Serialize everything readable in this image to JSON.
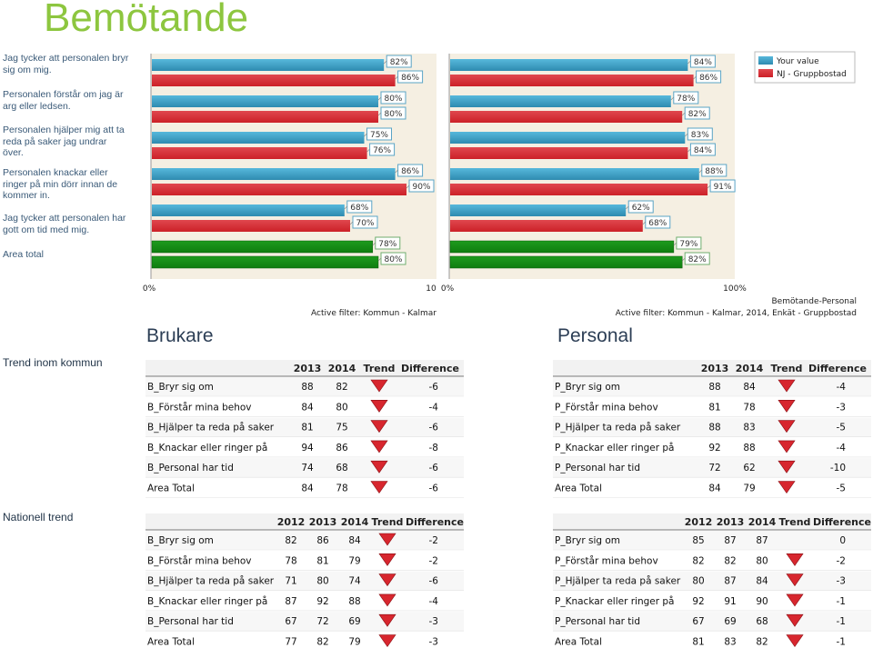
{
  "title": "Bemötande",
  "questions": [
    "Jag tycker att personalen bryr sig om mig.",
    "Personalen förstår om jag är arg eller ledsen.",
    "Personalen hjälper mig att ta reda på saker jag undrar över.",
    "Personalen knackar eller ringer på min dörr innan de kommer in.",
    "Jag tycker att personalen har gott om tid med mig.",
    "Area total"
  ],
  "sections": {
    "trend_kommun": "Trend inom kommun",
    "nationell": "Nationell trend"
  },
  "colors": {
    "your_value": "#2e8bb0",
    "comparison": "#cc2027",
    "total_a": "#1e9b1e",
    "total_b": "#0f7d0f",
    "panel_bg": "#f5efe2",
    "label_border": "#5aa4c6",
    "trend_down": "#d7262e"
  },
  "chart_data": [
    {
      "type": "bar",
      "categories": [
        "Jag tycker att personalen bryr sig om mig.",
        "Personalen förstår om jag är arg eller ledsen.",
        "Personalen hjälper mig att ta reda på saker jag undrar över.",
        "Personalen knackar eller ringer på min dörr innan de kommer in.",
        "Jag tycker att personalen har gott om tid med mig.",
        "Area total"
      ],
      "series": [
        {
          "values": [
            82,
            80,
            75,
            86,
            68,
            78
          ]
        },
        {
          "values": [
            86,
            80,
            76,
            90,
            70,
            80
          ]
        }
      ],
      "value_labels": [
        [
          "82%",
          "80%",
          "75%",
          "86%",
          "68%",
          "78%"
        ],
        [
          "86%",
          "80%",
          "76%",
          "90%",
          "70%",
          "80%"
        ]
      ],
      "xlim": [
        0,
        100
      ],
      "axis_left": "0%",
      "axis_right": "10",
      "footer": "Active filter: Kommun - Kalmar"
    },
    {
      "type": "bar",
      "categories": [
        "Jag tycker att personalen bryr sig om mig.",
        "Personalen förstår om jag är arg eller ledsen.",
        "Personalen hjälper mig att ta reda på saker jag undrar över.",
        "Personalen knackar eller ringer på min dörr innan de kommer in.",
        "Jag tycker att personalen har gott om tid med mig.",
        "Area total"
      ],
      "series": [
        {
          "name": "Your value",
          "values": [
            84,
            78,
            83,
            88,
            62,
            79
          ]
        },
        {
          "name": "NJ - Gruppbostad",
          "values": [
            86,
            82,
            84,
            91,
            68,
            82
          ]
        }
      ],
      "value_labels": [
        [
          "84%",
          "78%",
          "83%",
          "88%",
          "62%",
          "79%"
        ],
        [
          "86%",
          "82%",
          "84%",
          "91%",
          "68%",
          "82%"
        ]
      ],
      "xlim": [
        0,
        100
      ],
      "axis_left": "0%",
      "axis_right": "100%",
      "caption": "Bemötande-Personal",
      "footer": "Active filter: Kommun - Kalmar, 2014, Enkät - Gruppbostad",
      "legend": "top-right"
    },
    {
      "type": "table",
      "title": "Brukare",
      "columns": [
        "2013",
        "2014",
        "Trend",
        "Difference"
      ],
      "rows": [
        {
          "label": "B_Bryr sig om",
          "values": [
            "88",
            "82"
          ],
          "trend": "down",
          "diff": "-6"
        },
        {
          "label": "B_Förstår mina behov",
          "values": [
            "84",
            "80"
          ],
          "trend": "down",
          "diff": "-4"
        },
        {
          "label": "B_Hjälper ta reda på saker",
          "values": [
            "81",
            "75"
          ],
          "trend": "down",
          "diff": "-6"
        },
        {
          "label": "B_Knackar eller ringer på",
          "values": [
            "94",
            "86"
          ],
          "trend": "down",
          "diff": "-8"
        },
        {
          "label": "B_Personal har tid",
          "values": [
            "74",
            "68"
          ],
          "trend": "down",
          "diff": "-6"
        },
        {
          "label": "Area Total",
          "values": [
            "84",
            "78"
          ],
          "trend": "down",
          "diff": "-6"
        }
      ]
    },
    {
      "type": "table",
      "title": "Personal",
      "columns": [
        "2013",
        "2014",
        "Trend",
        "Difference"
      ],
      "rows": [
        {
          "label": "P_Bryr sig om",
          "values": [
            "88",
            "84"
          ],
          "trend": "down",
          "diff": "-4"
        },
        {
          "label": "P_Förstår mina behov",
          "values": [
            "81",
            "78"
          ],
          "trend": "down",
          "diff": "-3"
        },
        {
          "label": "P_Hjälper ta reda på saker",
          "values": [
            "88",
            "83"
          ],
          "trend": "down",
          "diff": "-5"
        },
        {
          "label": "P_Knackar eller ringer på",
          "values": [
            "92",
            "88"
          ],
          "trend": "down",
          "diff": "-4"
        },
        {
          "label": "P_Personal har tid",
          "values": [
            "72",
            "62"
          ],
          "trend": "down",
          "diff": "-10"
        },
        {
          "label": "Area Total",
          "values": [
            "84",
            "79"
          ],
          "trend": "down",
          "diff": "-5"
        }
      ]
    },
    {
      "type": "table",
      "columns": [
        "2012",
        "2013",
        "2014",
        "Trend",
        "Difference"
      ],
      "rows": [
        {
          "label": "B_Bryr sig om",
          "values": [
            "82",
            "86",
            "84"
          ],
          "trend": "down",
          "diff": "-2"
        },
        {
          "label": "B_Förstår mina behov",
          "values": [
            "78",
            "81",
            "79"
          ],
          "trend": "down",
          "diff": "-2"
        },
        {
          "label": "B_Hjälper ta reda på saker",
          "values": [
            "71",
            "80",
            "74"
          ],
          "trend": "down",
          "diff": "-6"
        },
        {
          "label": "B_Knackar eller ringer på",
          "values": [
            "87",
            "92",
            "88"
          ],
          "trend": "down",
          "diff": "-4"
        },
        {
          "label": "B_Personal har tid",
          "values": [
            "67",
            "72",
            "69"
          ],
          "trend": "down",
          "diff": "-3"
        },
        {
          "label": "Area Total",
          "values": [
            "77",
            "82",
            "79"
          ],
          "trend": "down",
          "diff": "-3"
        }
      ]
    },
    {
      "type": "table",
      "columns": [
        "2012",
        "2013",
        "2014",
        "Trend",
        "Difference"
      ],
      "rows": [
        {
          "label": "P_Bryr sig om",
          "values": [
            "85",
            "87",
            "87"
          ],
          "trend": "none",
          "diff": "0"
        },
        {
          "label": "P_Förstår mina behov",
          "values": [
            "82",
            "82",
            "80"
          ],
          "trend": "down",
          "diff": "-2"
        },
        {
          "label": "P_Hjälper ta reda på saker",
          "values": [
            "80",
            "87",
            "84"
          ],
          "trend": "down",
          "diff": "-3"
        },
        {
          "label": "P_Knackar eller ringer på",
          "values": [
            "92",
            "91",
            "90"
          ],
          "trend": "down",
          "diff": "-1"
        },
        {
          "label": "P_Personal har tid",
          "values": [
            "67",
            "69",
            "68"
          ],
          "trend": "down",
          "diff": "-1"
        },
        {
          "label": "Area Total",
          "values": [
            "81",
            "83",
            "82"
          ],
          "trend": "down",
          "diff": "-1"
        }
      ]
    }
  ]
}
